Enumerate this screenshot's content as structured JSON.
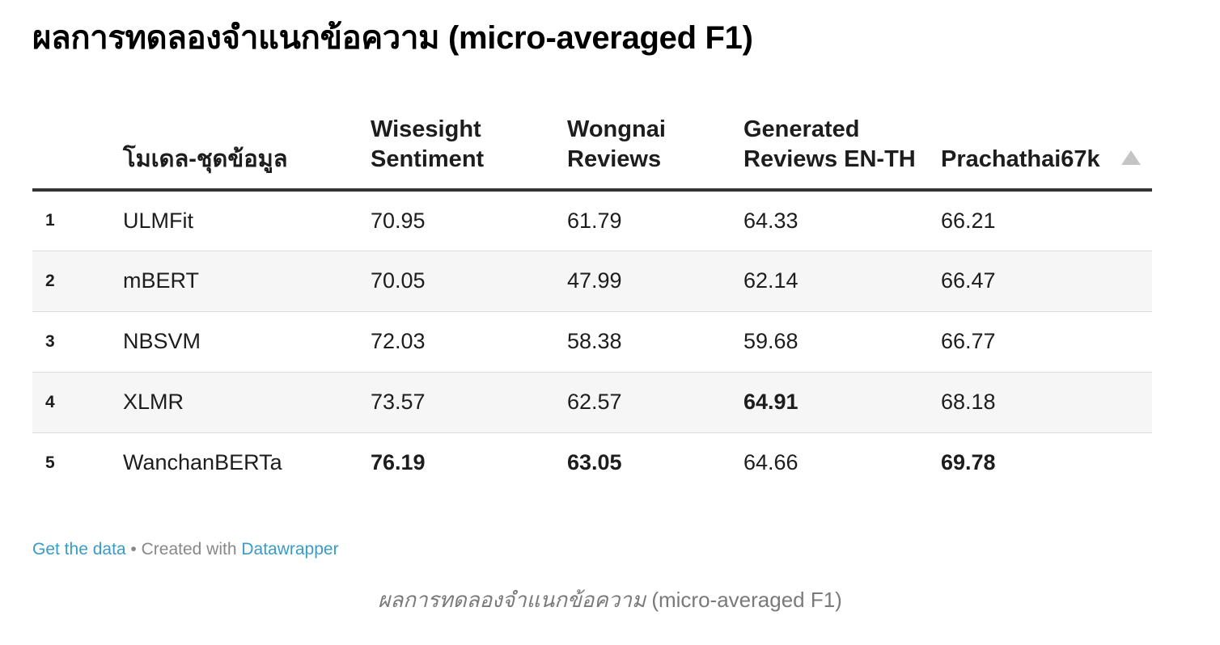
{
  "title": "ผลการทดลองจำแนกข้อความ (micro-averaged F1)",
  "footer": {
    "get_data": "Get the data",
    "separator": " • Created with ",
    "datawrapper": "Datawrapper"
  },
  "caption": {
    "thai": "ผลการทดลองจำแนกข้อความ",
    "english": " (micro-averaged F1)"
  },
  "colors": {
    "link": "#3a9bc6",
    "header_rule": "#333333",
    "stripe": "#f6f6f6",
    "sort_arrow": "#c4c4c4"
  },
  "sort": {
    "column": "Prachathai67k",
    "icon": "sort-up-triangle-icon"
  },
  "chart_data": {
    "type": "table",
    "title": "ผลการทดลองจำแนกข้อความ (micro-averaged F1)",
    "columns": [
      "",
      "โมเดล-ชุดข้อมูล",
      "Wisesight Sentiment",
      "Wongnai Reviews",
      "Generated Reviews EN-TH",
      "Prachathai67k"
    ],
    "rows": [
      {
        "rank": "1",
        "model": "ULMFit",
        "values": [
          "70.95",
          "61.79",
          "64.33",
          "66.21"
        ],
        "bold": [
          false,
          false,
          false,
          false
        ]
      },
      {
        "rank": "2",
        "model": "mBERT",
        "values": [
          "70.05",
          "47.99",
          "62.14",
          "66.47"
        ],
        "bold": [
          false,
          false,
          false,
          false
        ]
      },
      {
        "rank": "3",
        "model": "NBSVM",
        "values": [
          "72.03",
          "58.38",
          "59.68",
          "66.77"
        ],
        "bold": [
          false,
          false,
          false,
          false
        ]
      },
      {
        "rank": "4",
        "model": "XLMR",
        "values": [
          "73.57",
          "62.57",
          "64.91",
          "68.18"
        ],
        "bold": [
          false,
          false,
          true,
          false
        ]
      },
      {
        "rank": "5",
        "model": "WanchanBERTa",
        "values": [
          "76.19",
          "63.05",
          "64.66",
          "69.78"
        ],
        "bold": [
          true,
          true,
          false,
          true
        ]
      }
    ]
  }
}
